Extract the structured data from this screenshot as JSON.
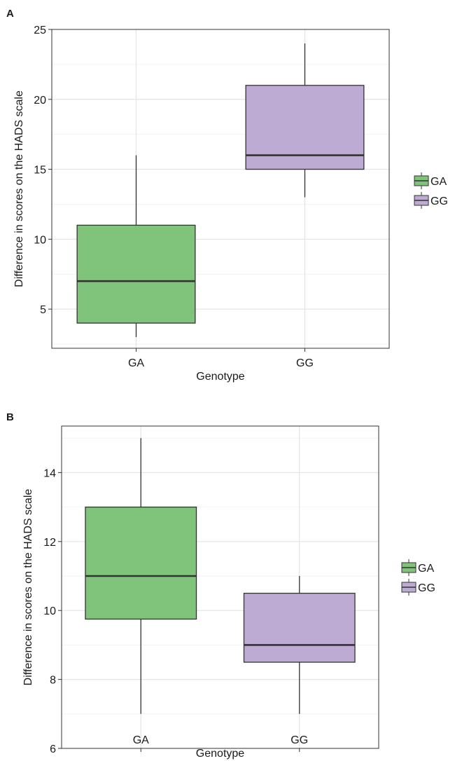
{
  "figure": {
    "panel_a_label": "A",
    "panel_b_label": "B"
  },
  "chart_data": [
    {
      "type": "box",
      "panel": "A",
      "title": "",
      "xlabel": "Genotype",
      "ylabel": "Difference in scores on the HADS scale",
      "categories": [
        "GA",
        "GG"
      ],
      "ylim": [
        2.2,
        25
      ],
      "yticks": [
        5,
        10,
        15,
        20,
        25
      ],
      "grid": true,
      "legend_position": "right",
      "series": [
        {
          "name": "GA",
          "color": "#80c47b",
          "min": 3,
          "q1": 4,
          "median": 7,
          "q3": 11,
          "max": 16
        },
        {
          "name": "GG",
          "color": "#bdabd3",
          "min": 13,
          "q1": 15,
          "median": 16,
          "q3": 21,
          "max": 24
        }
      ]
    },
    {
      "type": "box",
      "panel": "B",
      "title": "",
      "xlabel": "Genotype",
      "ylabel": "Difference in scores on the HADS scale",
      "categories": [
        "GA",
        "GG"
      ],
      "ylim": [
        6,
        15.35
      ],
      "yticks": [
        6,
        8,
        10,
        12,
        14
      ],
      "grid": true,
      "legend_position": "right",
      "series": [
        {
          "name": "GA",
          "color": "#80c47b",
          "min": 7,
          "q1": 9.75,
          "median": 11,
          "q3": 13,
          "max": 15
        },
        {
          "name": "GG",
          "color": "#bdabd3",
          "min": 7,
          "q1": 8.5,
          "median": 9,
          "q3": 10.5,
          "max": 11
        }
      ]
    }
  ]
}
